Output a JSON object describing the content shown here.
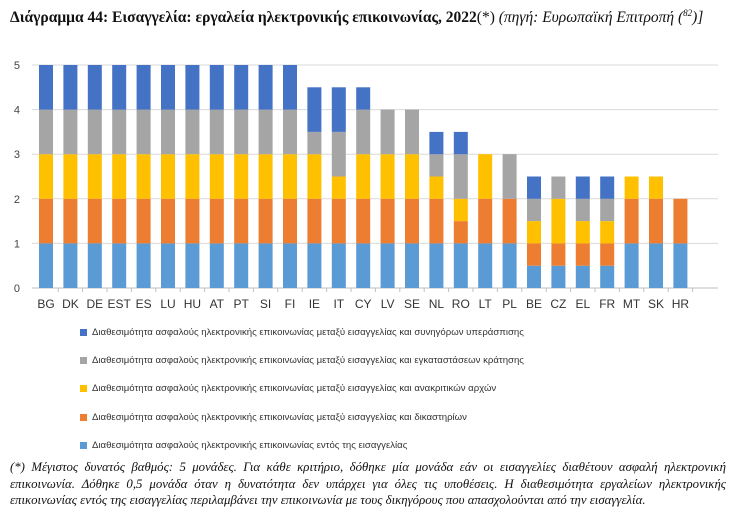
{
  "title": {
    "bold": "Διάγραμμα 44: Εισαγγελία: εργαλεία ηλεκτρονικής επικοινωνίας, 2022",
    "marker": "(*)",
    "source_prefix": "(πηγή: Ευρωπαϊκή Επιτροπή (",
    "footnote_ref": "82",
    "source_suffix": ")]"
  },
  "chart_data": {
    "type": "bar",
    "stacked": true,
    "categories": [
      "BG",
      "DK",
      "DE",
      "EST",
      "ES",
      "LU",
      "HU",
      "AT",
      "PT",
      "SI",
      "FI",
      "IE",
      "IT",
      "CY",
      "LV",
      "SE",
      "NL",
      "RO",
      "LT",
      "PL",
      "BE",
      "CZ",
      "EL",
      "FR",
      "MT",
      "SK",
      "HR"
    ],
    "ylim": [
      0,
      5
    ],
    "yticks": [
      0,
      1,
      2,
      3,
      4,
      5
    ],
    "grid": true,
    "legend_position": "bottom",
    "series": [
      {
        "name": "Διαθεσιμότητα ασφαλούς ηλεκτρονικής επικοινωνίας εντός της εισαγγελίας",
        "color": "#5b9bd5",
        "values": [
          1,
          1,
          1,
          1,
          1,
          1,
          1,
          1,
          1,
          1,
          1,
          1,
          1,
          1,
          1,
          1,
          1,
          1,
          1,
          1,
          0.5,
          0.5,
          0.5,
          0.5,
          1,
          1,
          1
        ]
      },
      {
        "name": "Διαθεσιμότητα ασφαλούς ηλεκτρονικής επικοινωνίας μεταξύ εισαγγελίας και δικαστηρίων",
        "color": "#ed7d31",
        "values": [
          1,
          1,
          1,
          1,
          1,
          1,
          1,
          1,
          1,
          1,
          1,
          1,
          1,
          1,
          1,
          1,
          1,
          0.5,
          1,
          1,
          0.5,
          0.5,
          0.5,
          0.5,
          1,
          1,
          1
        ]
      },
      {
        "name": "Διαθεσιμότητα ασφαλούς ηλεκτρονικής επικοινωνίας μεταξύ εισαγγελίας και ανακριτικών αρχών",
        "color": "#ffc000",
        "values": [
          1,
          1,
          1,
          1,
          1,
          1,
          1,
          1,
          1,
          1,
          1,
          1,
          0.5,
          1,
          1,
          1,
          0.5,
          0.5,
          1,
          0,
          0.5,
          1,
          0.5,
          0.5,
          0.5,
          0.5,
          0
        ]
      },
      {
        "name": "Διαθεσιμότητα ασφαλούς ηλεκτρονικής επικοινωνίας μεταξύ εισαγγελίας και εγκαταστάσεων κράτησης",
        "color": "#a5a5a5",
        "values": [
          1,
          1,
          1,
          1,
          1,
          1,
          1,
          1,
          1,
          1,
          1,
          0.5,
          1,
          1,
          1,
          1,
          0.5,
          1,
          0,
          1,
          0.5,
          0.5,
          0.5,
          0.5,
          0,
          0,
          0
        ]
      },
      {
        "name": "Διαθεσιμότητα ασφαλούς ηλεκτρονικής επικοινωνίας μεταξύ εισαγγελίας και συνηγόρων υπεράσπισης",
        "color": "#4472c4",
        "values": [
          1,
          1,
          1,
          1,
          1,
          1,
          1,
          1,
          1,
          1,
          1,
          1,
          1,
          0.5,
          0,
          0,
          0.5,
          0.5,
          0,
          0,
          0.5,
          0,
          0.5,
          0.5,
          0,
          0,
          0
        ]
      }
    ]
  },
  "footnote": "(*) Μέγιστος δυνατός βαθμός: 5 μονάδες. Για κάθε κριτήριο, δόθηκε μία μονάδα εάν οι εισαγγελίες διαθέτουν ασφαλή ηλεκτρονική επικοινωνία. Δόθηκε 0,5 μονάδα όταν η δυνατότητα δεν υπάρχει για όλες τις υποθέσεις. Η διαθεσιμότητα εργαλείων ηλεκτρονικής επικοινωνίας εντός της εισαγγελίας περιλαμβάνει την επικοινωνία με τους δικηγόρους που απασχολούνται από την εισαγγελία."
}
